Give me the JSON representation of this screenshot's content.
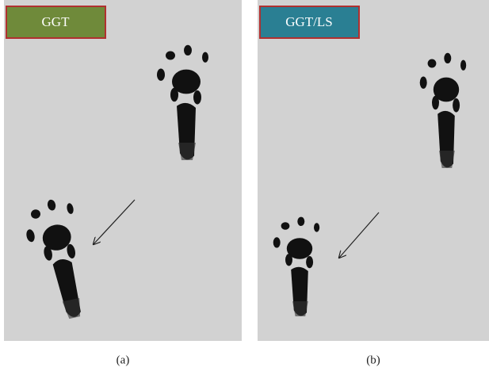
{
  "panels": [
    {
      "label": "GGT",
      "caption": "(a)"
    },
    {
      "label": "GGT/LS",
      "caption": "(b)"
    }
  ]
}
